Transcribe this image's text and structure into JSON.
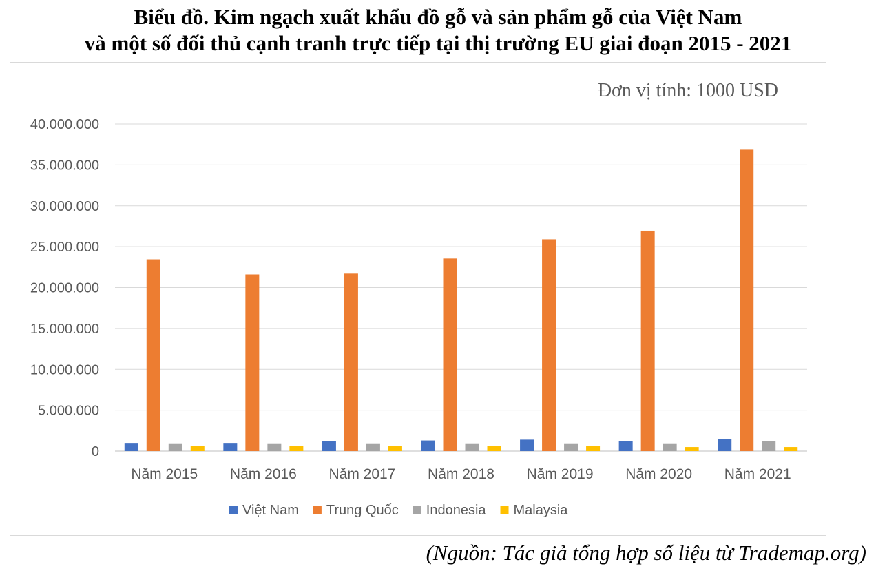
{
  "title": {
    "line1": "Biểu đồ. Kim ngạch xuất khẩu đồ gỗ và sản phẩm gỗ của Việt Nam",
    "line2": "và một số đối thủ cạnh tranh trực tiếp tại thị trường EU giai đoạn 2015 - 2021"
  },
  "unit_label": "Đơn vị tính: 1000 USD",
  "source": "(Nguồn: Tác giả tổng hợp số liệu từ Trademap.org)",
  "chart_data": {
    "type": "bar",
    "categories": [
      "Năm 2015",
      "Năm 2016",
      "Năm 2017",
      "Năm 2018",
      "Năm 2019",
      "Năm 2020",
      "Năm 2021"
    ],
    "series": [
      {
        "name": "Việt Nam",
        "color": "#4472C4",
        "values": [
          1000000,
          1000000,
          1200000,
          1300000,
          1400000,
          1200000,
          1450000
        ]
      },
      {
        "name": "Trung Quốc",
        "color": "#ED7D31",
        "values": [
          23450000,
          21600000,
          21700000,
          23550000,
          25900000,
          26950000,
          36850000
        ]
      },
      {
        "name": "Indonesia",
        "color": "#A5A5A5",
        "values": [
          950000,
          950000,
          950000,
          950000,
          950000,
          950000,
          1200000
        ]
      },
      {
        "name": "Malaysia",
        "color": "#FFC000",
        "values": [
          600000,
          600000,
          600000,
          600000,
          600000,
          500000,
          500000
        ]
      }
    ],
    "ylim": [
      0,
      40000000
    ],
    "yticks": [
      "0",
      "5.000.000",
      "10.000.000",
      "15.000.000",
      "20.000.000",
      "25.000.000",
      "30.000.000",
      "35.000.000",
      "40.000.000"
    ],
    "grid": true,
    "legend_position": "bottom"
  }
}
